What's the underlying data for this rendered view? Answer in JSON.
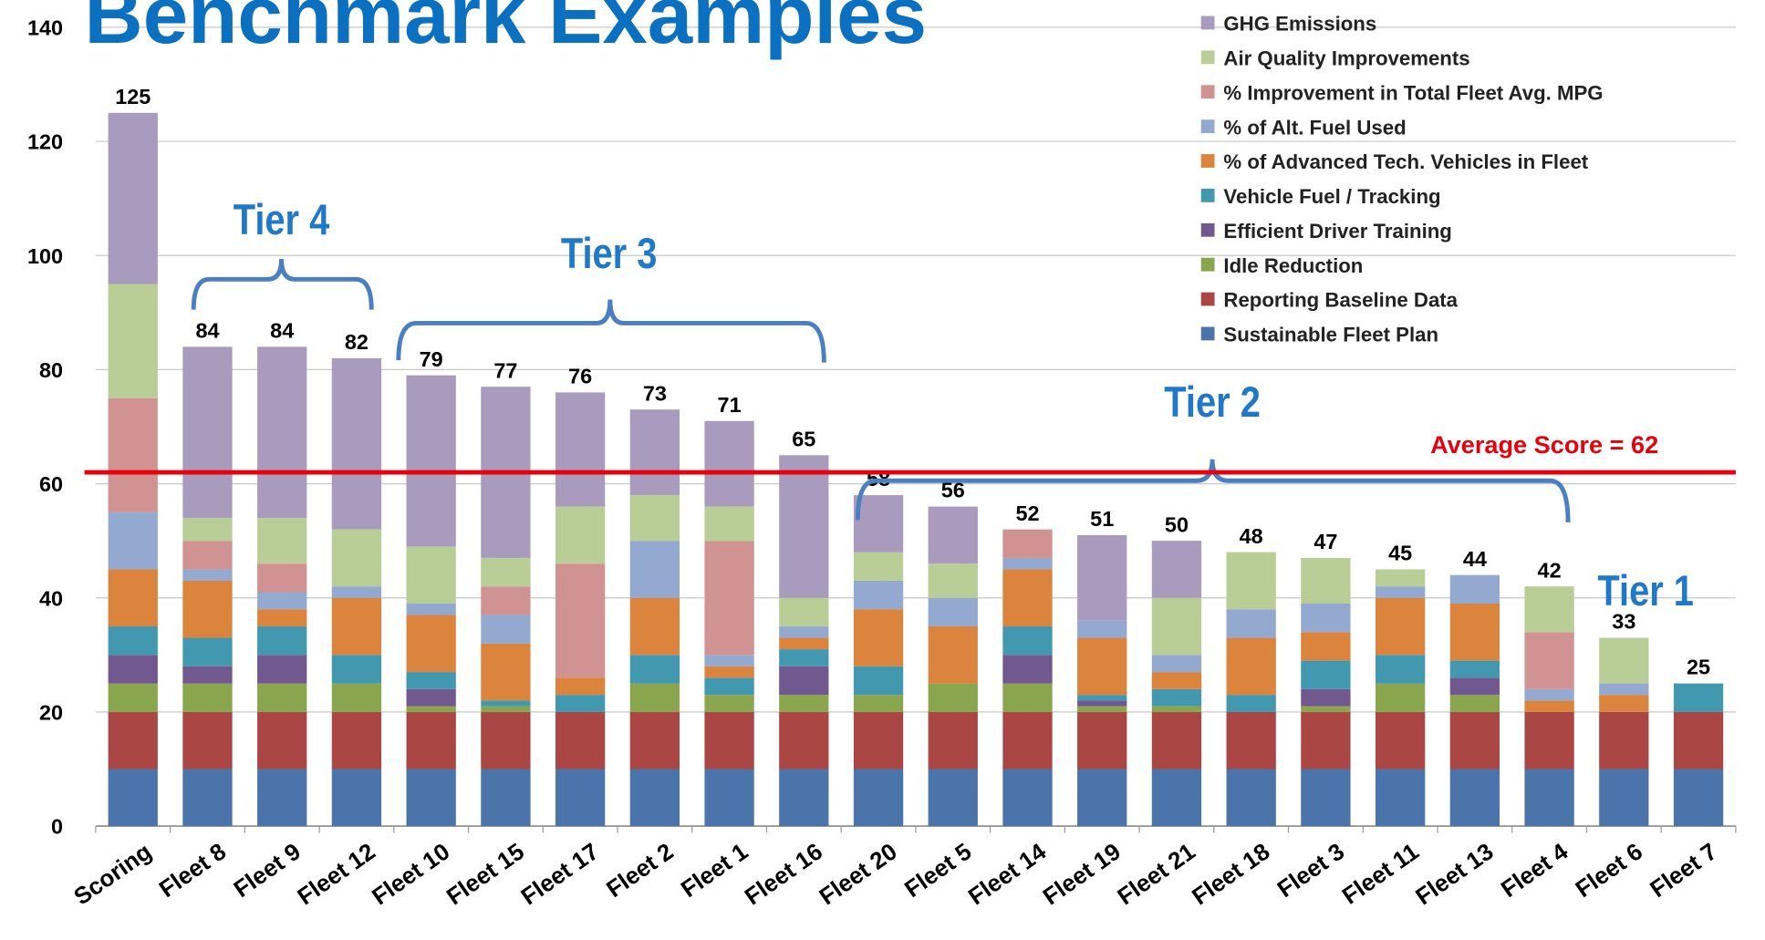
{
  "chart_data": {
    "type": "stacked_bar",
    "title": "Benchmark Examples",
    "categories": [
      "Scoring",
      "Fleet 8",
      "Fleet 9",
      "Fleet 12",
      "Fleet 10",
      "Fleet 15",
      "Fleet 17",
      "Fleet 2",
      "Fleet 1",
      "Fleet 16",
      "Fleet 20",
      "Fleet 5",
      "Fleet 14",
      "Fleet 19",
      "Fleet 21",
      "Fleet 18",
      "Fleet 3",
      "Fleet 11",
      "Fleet 13",
      "Fleet 4",
      "Fleet 6",
      "Fleet 7"
    ],
    "series": [
      {
        "name": "Sustainable Fleet Plan",
        "color": "#4a74aa",
        "values": [
          10,
          10,
          10,
          10,
          10,
          10,
          10,
          10,
          10,
          10,
          10,
          10,
          10,
          10,
          10,
          10,
          10,
          10,
          10,
          10,
          10,
          10
        ]
      },
      {
        "name": "Reporting Baseline Data",
        "color": "#aa4644",
        "values": [
          10,
          10,
          10,
          10,
          10,
          10,
          10,
          10,
          10,
          10,
          10,
          10,
          10,
          10,
          10,
          10,
          10,
          10,
          10,
          10,
          10,
          10
        ]
      },
      {
        "name": "Idle Reduction",
        "color": "#89a54e",
        "values": [
          5,
          5,
          5,
          5,
          1,
          1,
          0,
          5,
          3,
          3,
          3,
          5,
          5,
          1,
          1,
          0,
          1,
          5,
          3,
          0,
          0,
          0
        ]
      },
      {
        "name": "Efficient Driver Training",
        "color": "#71588f",
        "values": [
          5,
          3,
          5,
          0,
          3,
          0,
          0,
          0,
          0,
          5,
          0,
          0,
          5,
          1,
          0,
          0,
          3,
          0,
          3,
          0,
          0,
          0
        ]
      },
      {
        "name": "Vehicle Fuel / Tracking",
        "color": "#4298af",
        "values": [
          5,
          5,
          5,
          5,
          3,
          1,
          3,
          5,
          3,
          3,
          5,
          0,
          5,
          1,
          3,
          3,
          5,
          5,
          3,
          0,
          0,
          5
        ]
      },
      {
        "name": "% of Advanced Tech. Vehicles in Fleet",
        "color": "#db843d",
        "values": [
          10,
          10,
          3,
          10,
          10,
          10,
          3,
          10,
          2,
          2,
          10,
          10,
          10,
          10,
          3,
          10,
          5,
          10,
          10,
          2,
          3,
          0
        ]
      },
      {
        "name": "% of Alt. Fuel Used",
        "color": "#93a9cf",
        "values": [
          10,
          2,
          3,
          2,
          2,
          5,
          0,
          10,
          2,
          2,
          5,
          5,
          2,
          3,
          3,
          5,
          5,
          2,
          5,
          2,
          2,
          0
        ]
      },
      {
        "name": "% Improvement in Total Fleet Avg. MPG",
        "color": "#d19392",
        "values": [
          20,
          5,
          5,
          0,
          0,
          5,
          20,
          0,
          20,
          0,
          0,
          0,
          5,
          0,
          0,
          0,
          0,
          0,
          0,
          10,
          0,
          0
        ]
      },
      {
        "name": "Air Quality Improvements",
        "color": "#b9cd96",
        "values": [
          20,
          4,
          8,
          10,
          10,
          5,
          10,
          8,
          6,
          5,
          5,
          6,
          0,
          0,
          10,
          10,
          8,
          3,
          0,
          8,
          8,
          0
        ]
      },
      {
        "name": "GHG Emissions",
        "color": "#a99bbd",
        "values": [
          30,
          30,
          30,
          30,
          30,
          30,
          20,
          15,
          15,
          25,
          10,
          10,
          0,
          15,
          10,
          0,
          0,
          0,
          0,
          0,
          0,
          0
        ]
      }
    ],
    "totals": [
      125,
      84,
      84,
      82,
      79,
      77,
      76,
      73,
      71,
      65,
      58,
      56,
      52,
      51,
      50,
      48,
      47,
      45,
      44,
      42,
      33,
      25
    ],
    "ylim": [
      0,
      140
    ],
    "yticks": [
      0,
      20,
      40,
      60,
      80,
      100,
      120,
      140
    ],
    "grid": true,
    "reference_line": {
      "value": 62,
      "label": "Average Score = 62",
      "color": "#e8000b"
    },
    "annotations": [
      "Tier 4",
      "Tier 3",
      "Tier 2",
      "Tier 1"
    ]
  }
}
